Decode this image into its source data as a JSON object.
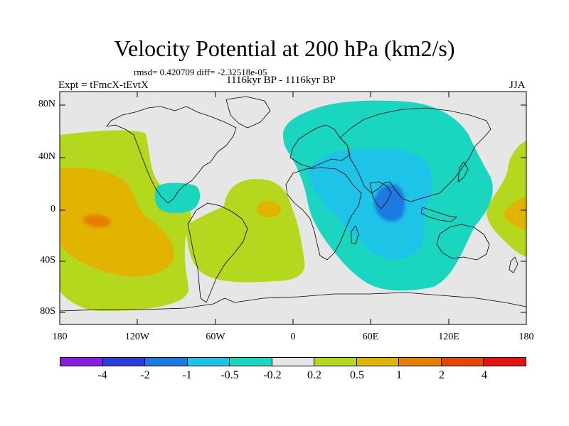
{
  "title": "Velocity Potential at 200 hPa (km2/s)",
  "stats": "rmsd= 0.420709 diff= -2.32518e-05",
  "subtitle": "1116kyr BP - 1116kyr BP",
  "expt": "Expt = tFmcX-tEvtX",
  "season": "JJA",
  "y_ticks": [
    "80N",
    "40N",
    "0",
    "40S",
    "80S"
  ],
  "x_ticks": [
    "180",
    "120W",
    "60W",
    "0",
    "60E",
    "120E",
    "180"
  ],
  "colorbar": {
    "labels": [
      "-4",
      "-2",
      "-1",
      "-0.5",
      "-0.2",
      "0.2",
      "0.5",
      "1",
      "2",
      "4"
    ],
    "colors": [
      "#8a1be0",
      "#2a3cdc",
      "#1a7ae0",
      "#1ec4e8",
      "#1ad6c0",
      "#e6e6e6",
      "#b4d81e",
      "#e0b400",
      "#e67e00",
      "#e64600",
      "#e61212"
    ]
  },
  "colors": {
    "ocean_background": "#e6e6e6",
    "coast": "#000000"
  }
}
